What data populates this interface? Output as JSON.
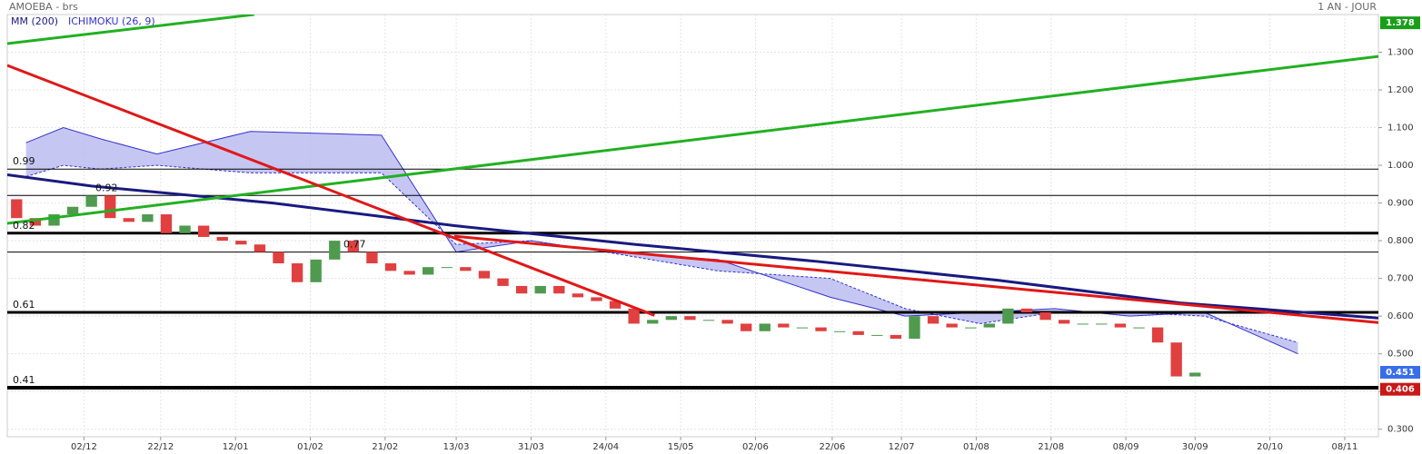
{
  "header": {
    "title": "AMOEBA - brs",
    "period": "1 AN - JOUR"
  },
  "chart_data": {
    "type": "candlestick",
    "ylim": [
      0.28,
      1.4
    ],
    "yticks": [
      {
        "value": 1.3,
        "label": "1.300"
      },
      {
        "value": 1.2,
        "label": "1.200"
      },
      {
        "value": 1.1,
        "label": "1.100"
      },
      {
        "value": 1.0,
        "label": "1.000"
      },
      {
        "value": 0.9,
        "label": "0.900"
      },
      {
        "value": 0.8,
        "label": "0.800"
      },
      {
        "value": 0.7,
        "label": "0.700"
      },
      {
        "value": 0.6,
        "label": "0.600"
      },
      {
        "value": 0.5,
        "label": "0.500"
      },
      {
        "value": 0.4,
        "label": "0.400"
      },
      {
        "value": 0.3,
        "label": "0.300"
      }
    ],
    "xlim": [
      0,
      73.3
    ],
    "xticks": [
      {
        "value": 4.1,
        "label": "02/12"
      },
      {
        "value": 8.2,
        "label": "22/12"
      },
      {
        "value": 12.2,
        "label": "12/01"
      },
      {
        "value": 16.2,
        "label": "01/02"
      },
      {
        "value": 20.2,
        "label": "21/02"
      },
      {
        "value": 24,
        "label": "13/03"
      },
      {
        "value": 28,
        "label": "31/03"
      },
      {
        "value": 32,
        "label": "24/04"
      },
      {
        "value": 36,
        "label": "15/05"
      },
      {
        "value": 40,
        "label": "02/06"
      },
      {
        "value": 44.1,
        "label": "22/06"
      },
      {
        "value": 47.8,
        "label": "12/07"
      },
      {
        "value": 51.8,
        "label": "01/08"
      },
      {
        "value": 55.8,
        "label": "21/08"
      },
      {
        "value": 59.8,
        "label": "08/09"
      },
      {
        "value": 63.5,
        "label": "30/09"
      },
      {
        "value": 67.5,
        "label": "20/10"
      },
      {
        "value": 71.5,
        "label": "08/11"
      }
    ],
    "grid": true,
    "candles": {
      "up_color": "#4f9a4f",
      "down_color": "#e04040",
      "open": [
        0.91,
        0.86,
        0.84,
        0.87,
        0.89,
        0.92,
        0.86,
        0.85,
        0.87,
        0.82,
        0.84,
        0.81,
        0.8,
        0.79,
        0.77,
        0.74,
        0.69,
        0.75,
        0.8,
        0.77,
        0.74,
        0.72,
        0.71,
        0.73,
        0.73,
        0.72,
        0.7,
        0.68,
        0.66,
        0.68,
        0.66,
        0.65,
        0.64,
        0.62,
        0.58,
        0.59,
        0.6,
        0.59,
        0.59,
        0.58,
        0.56,
        0.58,
        0.57,
        0.57,
        0.56,
        0.56,
        0.55,
        0.55,
        0.54,
        0.6,
        0.58,
        0.57,
        0.57,
        0.58,
        0.62,
        0.61,
        0.59,
        0.58,
        0.58,
        0.58,
        0.57,
        0.57,
        0.53,
        0.44
      ],
      "close": [
        0.86,
        0.84,
        0.87,
        0.89,
        0.92,
        0.86,
        0.85,
        0.87,
        0.82,
        0.84,
        0.81,
        0.8,
        0.79,
        0.77,
        0.74,
        0.69,
        0.75,
        0.8,
        0.77,
        0.74,
        0.72,
        0.71,
        0.73,
        0.73,
        0.72,
        0.7,
        0.68,
        0.66,
        0.68,
        0.66,
        0.65,
        0.64,
        0.62,
        0.58,
        0.59,
        0.6,
        0.59,
        0.59,
        0.58,
        0.56,
        0.58,
        0.57,
        0.57,
        0.56,
        0.56,
        0.55,
        0.55,
        0.54,
        0.6,
        0.58,
        0.57,
        0.57,
        0.58,
        0.62,
        0.61,
        0.59,
        0.58,
        0.58,
        0.58,
        0.57,
        0.57,
        0.53,
        0.44,
        0.45
      ]
    },
    "ichimoku": {
      "name": "ICHIMOKU (26, 9)",
      "color": "#3333cc",
      "fill": "#b8b8f0",
      "x": [
        1,
        3,
        5,
        8,
        13,
        20,
        24,
        28,
        32,
        38,
        44,
        48,
        52,
        56,
        60,
        64,
        69
      ],
      "span_a": [
        0.97,
        1.0,
        0.99,
        1.0,
        0.98,
        0.98,
        0.79,
        0.8,
        0.77,
        0.72,
        0.7,
        0.62,
        0.58,
        0.61,
        0.61,
        0.6,
        0.53
      ],
      "span_b": [
        1.06,
        1.1,
        1.07,
        1.03,
        1.09,
        1.08,
        0.77,
        0.8,
        0.77,
        0.75,
        0.65,
        0.6,
        0.61,
        0.62,
        0.6,
        0.61,
        0.5
      ]
    },
    "series": [
      {
        "name": "MM (200)",
        "color": "#1a1a80",
        "x": [
          0,
          4.5,
          14.2,
          23.9,
          33.6,
          43.3,
          53,
          62.7,
          73.3
        ],
        "values": [
          0.975,
          0.945,
          0.9,
          0.84,
          0.79,
          0.745,
          0.695,
          0.635,
          0.595
        ]
      }
    ],
    "trendlines": [
      {
        "color": "#22b022",
        "width": 3,
        "x": [
          0,
          13.2
        ],
        "values": [
          1.323,
          1.4
        ]
      },
      {
        "color": "#22b022",
        "width": 3,
        "x": [
          0,
          73.3
        ],
        "values": [
          0.846,
          1.289
        ]
      },
      {
        "color": "#e01818",
        "width": 3,
        "x": [
          0,
          34.6
        ],
        "values": [
          1.265,
          0.602
        ]
      },
      {
        "color": "#e01818",
        "width": 3,
        "x": [
          23.9,
          73.3
        ],
        "values": [
          0.812,
          0.583
        ]
      }
    ],
    "levels": [
      {
        "value": 0.99,
        "width": 1
      },
      {
        "value": 0.92,
        "width": 1
      },
      {
        "value": 0.82,
        "width": 3
      },
      {
        "value": 0.77,
        "width": 1
      },
      {
        "value": 0.61,
        "width": 3
      },
      {
        "value": 0.41,
        "width": 4
      }
    ],
    "price_tags": [
      {
        "value": 1.378,
        "color": "#1a9e1a"
      },
      {
        "value": 0.451,
        "color": "#3a6ee8"
      },
      {
        "value": 0.406,
        "color": "#c81818"
      }
    ]
  }
}
